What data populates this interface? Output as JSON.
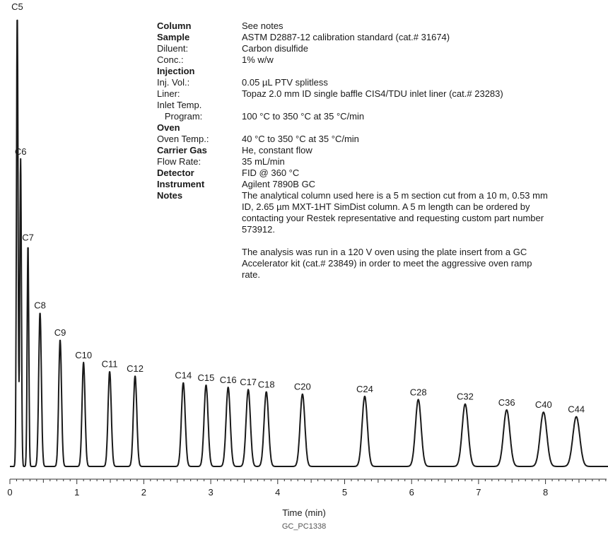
{
  "chart_data": {
    "type": "line",
    "title": "",
    "xlabel": "Time (min)",
    "ylabel": "",
    "xlim": [
      0,
      9
    ],
    "ylim": [
      0,
      100
    ],
    "x_ticks": [
      "0",
      "1",
      "2",
      "3",
      "4",
      "5",
      "6",
      "7",
      "8"
    ],
    "grid": false,
    "series": [
      {
        "peaks": [
          {
            "label": "C5",
            "rt": 0.11,
            "height": 100
          },
          {
            "label": "C6",
            "rt": 0.16,
            "height": 68
          },
          {
            "label": "C7",
            "rt": 0.27,
            "height": 49
          },
          {
            "label": "C8",
            "rt": 0.45,
            "height": 34
          },
          {
            "label": "C9",
            "rt": 0.75,
            "height": 28
          },
          {
            "label": "C10",
            "rt": 1.1,
            "height": 23
          },
          {
            "label": "C11",
            "rt": 1.49,
            "height": 21
          },
          {
            "label": "C12",
            "rt": 1.87,
            "height": 20
          },
          {
            "label": "C14",
            "rt": 2.59,
            "height": 18.5
          },
          {
            "label": "C15",
            "rt": 2.93,
            "height": 18
          },
          {
            "label": "C16",
            "rt": 3.26,
            "height": 17.5
          },
          {
            "label": "C17",
            "rt": 3.56,
            "height": 17
          },
          {
            "label": "C18",
            "rt": 3.83,
            "height": 16.5
          },
          {
            "label": "C20",
            "rt": 4.37,
            "height": 16
          },
          {
            "label": "C24",
            "rt": 5.3,
            "height": 15.5
          },
          {
            "label": "C28",
            "rt": 6.1,
            "height": 14.8
          },
          {
            "label": "C32",
            "rt": 6.8,
            "height": 13.8
          },
          {
            "label": "C36",
            "rt": 7.42,
            "height": 12.5
          },
          {
            "label": "C40",
            "rt": 7.97,
            "height": 12
          },
          {
            "label": "C44",
            "rt": 8.46,
            "height": 11
          }
        ]
      }
    ]
  },
  "info_rows": [
    {
      "key": "Column",
      "bold": true,
      "value": "See notes"
    },
    {
      "key": "Sample",
      "bold": true,
      "value": "ASTM D2887-12 calibration standard (cat.# 31674)"
    },
    {
      "key": "Diluent:",
      "bold": false,
      "value": "Carbon disulfide"
    },
    {
      "key": "Conc.:",
      "bold": false,
      "value": "1% w/w"
    },
    {
      "key": "Injection",
      "bold": true,
      "value": ""
    },
    {
      "key": "Inj. Vol.:",
      "bold": false,
      "value": "0.05 µL PTV splitless"
    },
    {
      "key": "Liner:",
      "bold": false,
      "value": "Topaz 2.0 mm ID single baffle CIS4/TDU inlet liner (cat.# 23283)"
    },
    {
      "key": "Inlet Temp.",
      "bold": false,
      "value": ""
    },
    {
      "key": "   Program:",
      "bold": false,
      "value": "100 °C to 350 °C at 35 °C/min"
    },
    {
      "key": "Oven",
      "bold": true,
      "value": ""
    },
    {
      "key": "Oven Temp.:",
      "bold": false,
      "value": "40 °C to 350 °C at 35 °C/min"
    },
    {
      "key": "Carrier Gas",
      "bold": true,
      "value": "He, constant flow"
    },
    {
      "key": "Flow Rate:",
      "bold": false,
      "value": "35 mL/min"
    },
    {
      "key": "Detector",
      "bold": true,
      "value": "FID @ 360 °C"
    },
    {
      "key": "Instrument",
      "bold": true,
      "value": "Agilent 7890B GC"
    }
  ],
  "notes": {
    "key": "Notes",
    "lines": [
      "The analytical column used here is a 5 m section cut from a 10 m, 0.53 mm",
      "ID, 2.65 µm MXT-1HT SimDist column. A 5 m length can be ordered by",
      "contacting your Restek representative and requesting custom part number",
      "573912.",
      "",
      "The analysis was run in a 120 V oven using the plate insert from a GC",
      "Accelerator kit (cat.# 23849) in order to meet the aggressive oven ramp",
      "rate."
    ]
  },
  "figure_code": "GC_PC1338",
  "colors": {
    "trace": "#1a1a1a",
    "axis": "#333333"
  }
}
